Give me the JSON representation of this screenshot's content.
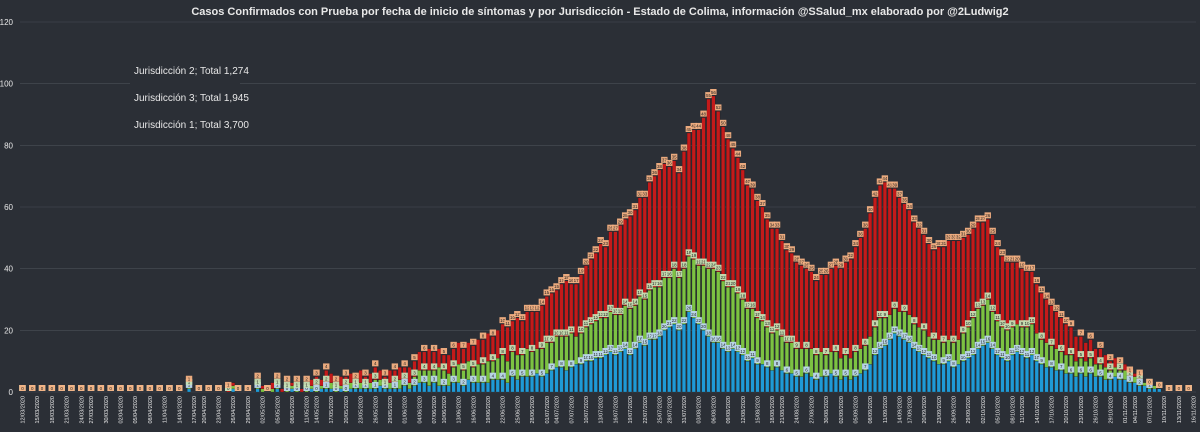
{
  "chart_data": {
    "type": "bar",
    "stacked": true,
    "title": "Casos Confirmados con Prueba por fecha de inicio de síntomas y por Jurisdicción - Estado de Colima, información @SSalud_mx elaborado por @2Ludwig2",
    "xlabel": "",
    "ylabel": "",
    "ylim": [
      0,
      120
    ],
    "yticks": [
      0,
      20,
      40,
      60,
      80,
      100,
      120
    ],
    "grid": true,
    "legend_position": "top-left",
    "x_start": "2020-03-12",
    "x_end": "2020-11-18",
    "x_tick_labels": [
      "12/03/2020",
      "15/03/2020",
      "18/03/2020",
      "21/03/2020",
      "24/03/2020",
      "27/03/2020",
      "30/03/2020",
      "02/04/2020",
      "05/04/2020",
      "08/04/2020",
      "11/04/2020",
      "14/04/2020",
      "17/04/2020",
      "20/04/2020",
      "23/04/2020",
      "26/04/2020",
      "29/04/2020",
      "02/05/2020",
      "05/05/2020",
      "08/05/2020",
      "11/05/2020",
      "14/05/2020",
      "17/05/2020",
      "20/05/2020",
      "23/05/2020",
      "26/05/2020",
      "29/05/2020",
      "01/06/2020",
      "04/06/2020",
      "07/06/2020",
      "10/06/2020",
      "13/06/2020",
      "16/06/2020",
      "19/06/2020",
      "22/06/2020",
      "25/06/2020",
      "28/06/2020",
      "01/07/2020",
      "04/07/2020",
      "07/07/2020",
      "10/07/2020",
      "13/07/2020",
      "16/07/2020",
      "19/07/2020",
      "22/07/2020",
      "25/07/2020",
      "28/07/2020",
      "31/07/2020",
      "03/08/2020",
      "06/08/2020",
      "09/08/2020",
      "12/08/2020",
      "15/08/2020",
      "18/08/2020",
      "21/08/2020",
      "24/08/2020",
      "27/08/2020",
      "30/08/2020",
      "02/09/2020",
      "05/09/2020",
      "08/09/2020",
      "11/09/2020",
      "14/09/2020",
      "17/09/2020",
      "20/09/2020",
      "23/09/2020",
      "26/09/2020",
      "29/09/2020",
      "02/10/2020",
      "05/10/2020",
      "08/10/2020",
      "11/10/2020",
      "14/10/2020",
      "17/10/2020",
      "20/10/2020",
      "23/10/2020",
      "26/10/2020",
      "29/10/2020",
      "01/11/2020",
      "04/11/2020",
      "07/11/2020",
      "10/11/2020",
      "13/11/2020",
      "16/11/2020"
    ],
    "series": [
      {
        "name": "Jurisdicción 2; Total 1,274",
        "color": "#1f9ad6",
        "stack_order": 1,
        "values": [
          0,
          0,
          0,
          0,
          0,
          0,
          0,
          0,
          0,
          0,
          0,
          0,
          0,
          0,
          0,
          0,
          0,
          0,
          0,
          0,
          0,
          0,
          0,
          0,
          0,
          0,
          0,
          0,
          0,
          0,
          0,
          0,
          0,
          0,
          1,
          0,
          0,
          0,
          0,
          0,
          0,
          0,
          0,
          1,
          0,
          0,
          0,
          0,
          1,
          0,
          0,
          0,
          1,
          0,
          0,
          1,
          0,
          0,
          0,
          1,
          0,
          1,
          1,
          1,
          0,
          1,
          0,
          1,
          1,
          1,
          1,
          1,
          1,
          2,
          1,
          1,
          1,
          1,
          2,
          1,
          2,
          3,
          3,
          2,
          3,
          2,
          2,
          2,
          3,
          3,
          2,
          4,
          3,
          3,
          3,
          3,
          4,
          4,
          4,
          3,
          5,
          4,
          5,
          5,
          5,
          6,
          5,
          6,
          7,
          8,
          8,
          7,
          8,
          9,
          9,
          10,
          10,
          11,
          11,
          12,
          13,
          12,
          13,
          14,
          12,
          14,
          16,
          15,
          17,
          17,
          18,
          20,
          21,
          22,
          20,
          22,
          26,
          24,
          22,
          20,
          18,
          16,
          16,
          14,
          13,
          14,
          13,
          12,
          10,
          11,
          9,
          9,
          8,
          7,
          8,
          7,
          6,
          6,
          5,
          5,
          6,
          5,
          4,
          5,
          5,
          6,
          5,
          4,
          5,
          4,
          5,
          6,
          7,
          9,
          12,
          14,
          15,
          17,
          19,
          18,
          17,
          16,
          14,
          13,
          12,
          11,
          10,
          9,
          9,
          10,
          8,
          9,
          10,
          11,
          12,
          14,
          15,
          16,
          14,
          12,
          11,
          10,
          12,
          13,
          12,
          11,
          12,
          10,
          9,
          8,
          8,
          7,
          7,
          6,
          6,
          5,
          6,
          5,
          6,
          5,
          5,
          4,
          4,
          5,
          4,
          4,
          3,
          3,
          2,
          2,
          1,
          1,
          1,
          0,
          0,
          0,
          0,
          0,
          0,
          0
        ]
      },
      {
        "name": "Jurisdicción 3; Total 1,945",
        "color": "#7cc242",
        "stack_order": 2,
        "values": [
          0,
          0,
          0,
          0,
          0,
          0,
          0,
          0,
          0,
          0,
          0,
          0,
          0,
          0,
          0,
          0,
          0,
          0,
          0,
          0,
          0,
          0,
          0,
          0,
          0,
          0,
          0,
          0,
          0,
          0,
          0,
          0,
          0,
          0,
          1,
          0,
          0,
          0,
          0,
          0,
          0,
          0,
          0,
          1,
          0,
          0,
          0,
          0,
          1,
          1,
          0,
          1,
          1,
          0,
          1,
          1,
          1,
          0,
          1,
          1,
          2,
          1,
          2,
          2,
          1,
          1,
          2,
          2,
          1,
          2,
          1,
          2,
          3,
          2,
          1,
          2,
          2,
          3,
          2,
          2,
          3,
          4,
          4,
          5,
          4,
          6,
          5,
          4,
          5,
          6,
          5,
          6,
          5,
          6,
          6,
          7,
          6,
          7,
          8,
          7,
          8,
          8,
          7,
          9,
          8,
          8,
          9,
          10,
          9,
          10,
          10,
          11,
          11,
          9,
          10,
          11,
          12,
          12,
          13,
          12,
          13,
          13,
          12,
          14,
          15,
          14,
          15,
          15,
          16,
          17,
          16,
          17,
          16,
          18,
          17,
          18,
          18,
          19,
          19,
          21,
          22,
          24,
          23,
          22,
          21,
          20,
          19,
          18,
          17,
          16,
          15,
          14,
          13,
          12,
          12,
          11,
          10,
          10,
          9,
          9,
          8,
          9,
          8,
          8,
          7,
          7,
          8,
          7,
          7,
          7,
          8,
          8,
          8,
          9,
          9,
          10,
          9,
          8,
          8,
          8,
          9,
          9,
          8,
          8,
          8,
          7,
          7,
          8,
          7,
          7,
          8,
          8,
          9,
          10,
          12,
          13,
          13,
          14,
          12,
          11,
          10,
          10,
          9,
          9,
          9,
          10,
          10,
          9,
          8,
          8,
          7,
          7,
          6,
          6,
          6,
          5,
          5,
          5,
          5,
          4,
          4,
          4,
          3,
          3,
          3,
          3,
          2,
          2,
          2,
          1,
          1,
          1,
          0,
          0,
          0,
          0,
          0,
          0,
          0,
          0,
          0,
          0
        ]
      },
      {
        "name": "Jurisdicción 1; Total 3,700",
        "color": "#c41a1a",
        "stack_order": 3,
        "values": [
          0,
          0,
          0,
          0,
          0,
          0,
          0,
          0,
          0,
          0,
          0,
          0,
          0,
          0,
          0,
          0,
          0,
          0,
          0,
          0,
          0,
          0,
          0,
          0,
          0,
          0,
          0,
          0,
          0,
          0,
          0,
          0,
          0,
          0,
          1,
          0,
          0,
          0,
          0,
          0,
          0,
          0,
          1,
          1,
          0,
          0,
          0,
          0,
          2,
          1,
          0,
          2,
          2,
          1,
          2,
          1,
          2,
          1,
          2,
          2,
          3,
          2,
          4,
          3,
          2,
          3,
          3,
          3,
          2,
          4,
          3,
          3,
          4,
          3,
          3,
          4,
          4,
          4,
          4,
          5,
          5,
          6,
          6,
          7,
          6,
          6,
          5,
          6,
          6,
          7,
          7,
          6,
          7,
          8,
          8,
          9,
          8,
          9,
          10,
          11,
          10,
          12,
          11,
          12,
          13,
          12,
          14,
          15,
          16,
          15,
          17,
          18,
          16,
          17,
          19,
          20,
          21,
          22,
          24,
          23,
          26,
          27,
          29,
          28,
          30,
          31,
          32,
          33,
          35,
          36,
          38,
          37,
          36,
          35,
          34,
          38,
          40,
          42,
          44,
          48,
          55,
          56,
          52,
          50,
          48,
          45,
          44,
          42,
          40,
          39,
          38,
          37,
          35,
          34,
          33,
          31,
          30,
          29,
          28,
          27,
          26,
          25,
          24,
          25,
          26,
          27,
          28,
          29,
          30,
          32,
          34,
          36,
          38,
          40,
          42,
          43,
          44,
          41,
          39,
          37,
          35,
          34,
          33,
          32,
          31,
          30,
          29,
          30,
          31,
          32,
          33,
          32,
          31,
          30,
          29,
          28,
          27,
          26,
          25,
          24,
          23,
          22,
          21,
          20,
          19,
          18,
          17,
          16,
          15,
          14,
          13,
          12,
          11,
          10,
          9,
          8,
          7,
          6,
          6,
          5,
          5,
          4,
          3,
          3,
          2,
          2,
          1,
          1,
          1,
          0,
          0,
          0,
          0,
          0,
          0,
          0,
          0,
          0,
          0
        ]
      }
    ]
  },
  "legend": {
    "j2": "Jurisdicción 2; Total 1,274",
    "j3": "Jurisdicción 3; Total 1,945",
    "j1": "Jurisdicción 1; Total 3,700"
  },
  "colors": {
    "background": "#2b2f36",
    "grid": "#4a4f57",
    "text": "#e8e8e8",
    "label_fill_j1": "#f4b183",
    "label_fill_j2": "#bdd7ee",
    "label_fill_j3": "#c5e0b4"
  }
}
